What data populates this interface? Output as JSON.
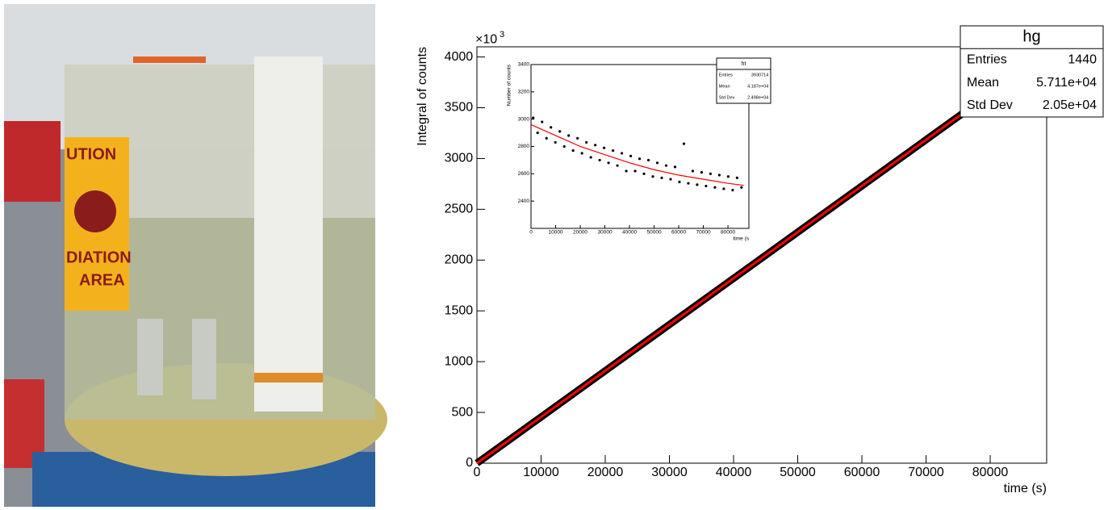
{
  "photo": {
    "texts": [
      "UTION",
      "DIATION",
      "AREA"
    ]
  },
  "chart_data": [
    {
      "type": "line",
      "y_label": "Integral of counts",
      "x_label": "time (s)",
      "y_multiplier": {
        "base": "×10",
        "exp": "3"
      },
      "xlim": [
        0,
        88800
      ],
      "ylim": [
        0,
        4100
      ],
      "xticks": [
        0,
        10000,
        20000,
        30000,
        40000,
        50000,
        60000,
        70000,
        80000
      ],
      "yticks": [
        0,
        500,
        1000,
        1500,
        2000,
        2500,
        3000,
        3500,
        4000
      ],
      "series": [
        {
          "color": "#000000",
          "x": [
            0,
            86400
          ],
          "values": [
            0,
            3930.7
          ]
        },
        {
          "color": "#ff0000",
          "x": [
            0,
            86400
          ],
          "values": [
            0,
            3930.7
          ]
        }
      ],
      "stats": {
        "title": "hg",
        "rows": [
          [
            "Entries",
            "1440"
          ],
          [
            "Mean",
            "5.711e+04"
          ],
          [
            "Std Dev",
            "2.05e+04"
          ]
        ]
      }
    },
    {
      "type": "scatter",
      "y_label": "Number of counts",
      "x_label": "time (s",
      "xlim": [
        0,
        88500
      ],
      "ylim": [
        2200,
        3400
      ],
      "xticks": [
        0,
        10000,
        20000,
        30000,
        40000,
        50000,
        60000,
        70000,
        80000
      ],
      "yticks": [
        2400,
        2600,
        2800,
        3000,
        3200,
        3400
      ],
      "series": [
        {
          "color": "#000000",
          "x": [
            900,
            2700,
            4500,
            6300,
            8100,
            9900,
            11700,
            13500,
            15300,
            17100,
            18900,
            20700,
            22500,
            24300,
            26100,
            27900,
            29700,
            31500,
            33300,
            35100,
            36900,
            38700,
            40500,
            42300,
            44100,
            45900,
            47700,
            49500,
            51300,
            53100,
            54900,
            56700,
            58500,
            60300,
            62100,
            63900,
            65700,
            67500,
            69300,
            71100,
            72900,
            74700,
            76500,
            78300,
            80100,
            81900,
            83700,
            85500
          ],
          "values": [
            3010,
            2900,
            2980,
            2860,
            2940,
            2830,
            2910,
            2800,
            2880,
            2770,
            2860,
            2750,
            2830,
            2720,
            2810,
            2700,
            2790,
            2680,
            2770,
            2660,
            2750,
            2620,
            2730,
            2620,
            2710,
            2600,
            2700,
            2580,
            2680,
            2570,
            2660,
            2560,
            2650,
            2540,
            2820,
            2530,
            2620,
            2520,
            2610,
            2510,
            2600,
            2500,
            2590,
            2490,
            2580,
            2480,
            2570,
            2500
          ]
        },
        {
          "color": "#ff0000",
          "x": [
            0,
            10000,
            20000,
            30000,
            40000,
            50000,
            60000,
            70000,
            80000,
            86400
          ],
          "values": [
            2960,
            2880,
            2800,
            2740,
            2680,
            2630,
            2590,
            2560,
            2530,
            2515
          ]
        }
      ],
      "stats": {
        "title": "ht",
        "rows": [
          [
            "Entries",
            "3930714"
          ],
          [
            "Mean",
            "4.187e+04"
          ],
          [
            "Std Dev",
            "2.498e+04"
          ]
        ]
      }
    }
  ]
}
